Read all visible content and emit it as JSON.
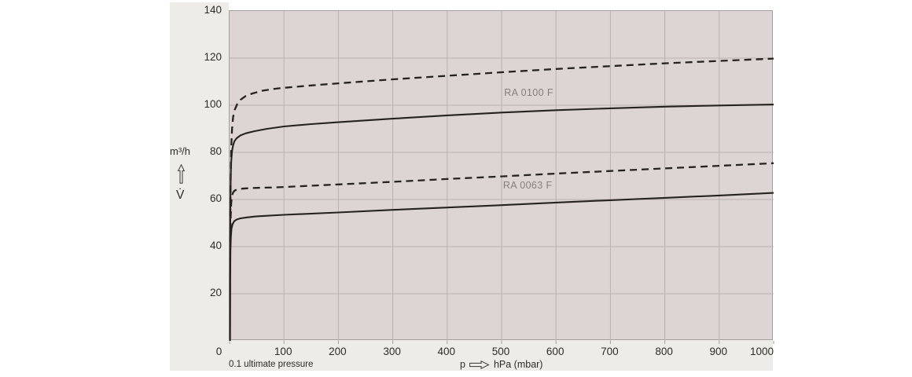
{
  "colors": {
    "bg": "#eeece8",
    "plot_bg": "#ddd5d4",
    "grid": "#b9b1b0",
    "border": "#a5a09e",
    "curve": "#26231f",
    "text": "#2f2c28",
    "curve_label": "#847f7b"
  },
  "axes": {
    "y_unit": "m³/h",
    "y_symbol": "V̇",
    "x_symbol": "p",
    "x_unit": "hPa (mbar)",
    "x_note": "0.1 ultimate pressure"
  },
  "chart_data": {
    "type": "line",
    "title": "",
    "xlabel": "p → hPa (mbar)",
    "ylabel": "V̇ (m³/h)",
    "xlim": [
      0,
      1000
    ],
    "ylim": [
      0,
      140
    ],
    "grid": true,
    "legend_position": "inline-curve-labels",
    "x_ticks": [
      0,
      100,
      200,
      300,
      400,
      500,
      600,
      700,
      800,
      900,
      1000
    ],
    "y_ticks": [
      20,
      40,
      60,
      80,
      100,
      120,
      140
    ],
    "series": [
      {
        "name": "RA 0100 F",
        "style": "dashed",
        "points": [
          [
            1.4,
            53
          ],
          [
            2.2,
            72
          ],
          [
            3.2,
            83
          ],
          [
            4.6,
            90
          ],
          [
            6.5,
            95
          ],
          [
            9.4,
            98
          ],
          [
            14,
            100.5
          ],
          [
            20,
            102.3
          ],
          [
            29,
            103.8
          ],
          [
            42,
            105
          ],
          [
            61,
            106.2
          ],
          [
            84,
            107
          ],
          [
            100,
            107.4
          ],
          [
            150,
            108.4
          ],
          [
            200,
            109.3
          ],
          [
            300,
            111
          ],
          [
            400,
            112.5
          ],
          [
            500,
            114
          ],
          [
            600,
            115.4
          ],
          [
            700,
            116.6
          ],
          [
            800,
            117.8
          ],
          [
            900,
            118.8
          ],
          [
            1000,
            119.8
          ]
        ]
      },
      {
        "name": "RA 0100 F",
        "style": "solid",
        "points": [
          [
            0.8,
            0
          ],
          [
            1.1,
            40
          ],
          [
            1.6,
            60
          ],
          [
            2.2,
            70
          ],
          [
            3,
            76
          ],
          [
            4.5,
            80.5
          ],
          [
            6.5,
            83
          ],
          [
            9,
            84.8
          ],
          [
            13,
            86
          ],
          [
            20,
            87.2
          ],
          [
            30,
            88.1
          ],
          [
            46,
            89
          ],
          [
            69,
            90
          ],
          [
            100,
            91
          ],
          [
            150,
            92
          ],
          [
            200,
            92.8
          ],
          [
            300,
            94.3
          ],
          [
            400,
            95.7
          ],
          [
            500,
            96.9
          ],
          [
            600,
            97.9
          ],
          [
            700,
            98.7
          ],
          [
            800,
            99.4
          ],
          [
            900,
            99.9
          ],
          [
            1000,
            100.3
          ]
        ]
      },
      {
        "name": "RA 0063 F",
        "style": "dashed",
        "points": [
          [
            1.4,
            42
          ],
          [
            2,
            52
          ],
          [
            2.9,
            58
          ],
          [
            4.3,
            61.5
          ],
          [
            6.5,
            63
          ],
          [
            9.4,
            63.8
          ],
          [
            14.5,
            64.3
          ],
          [
            23,
            64.6
          ],
          [
            36,
            64.8
          ],
          [
            58,
            65
          ],
          [
            79,
            65.1
          ],
          [
            100,
            65.3
          ],
          [
            200,
            66.4
          ],
          [
            300,
            67.5
          ],
          [
            400,
            68.7
          ],
          [
            500,
            69.8
          ],
          [
            600,
            71
          ],
          [
            700,
            72.1
          ],
          [
            800,
            73.2
          ],
          [
            900,
            74.3
          ],
          [
            1000,
            75.4
          ]
        ]
      },
      {
        "name": "RA 0063 F",
        "style": "solid",
        "points": [
          [
            0.8,
            0
          ],
          [
            1.1,
            25
          ],
          [
            1.6,
            38
          ],
          [
            2.4,
            44
          ],
          [
            3.5,
            47.5
          ],
          [
            5.5,
            49.5
          ],
          [
            8.5,
            50.8
          ],
          [
            13,
            51.5
          ],
          [
            20,
            52
          ],
          [
            32,
            52.4
          ],
          [
            48,
            52.8
          ],
          [
            69,
            53.1
          ],
          [
            100,
            53.5
          ],
          [
            200,
            54.5
          ],
          [
            300,
            55.6
          ],
          [
            400,
            56.6
          ],
          [
            500,
            57.6
          ],
          [
            600,
            58.7
          ],
          [
            700,
            59.7
          ],
          [
            800,
            60.7
          ],
          [
            900,
            61.7
          ],
          [
            1000,
            62.8
          ]
        ]
      }
    ],
    "curve_labels": [
      {
        "text": "RA 0100 F",
        "p": 550,
        "v": 105.3
      },
      {
        "text": "RA 0063 F",
        "p": 548,
        "v": 65.9
      }
    ]
  }
}
